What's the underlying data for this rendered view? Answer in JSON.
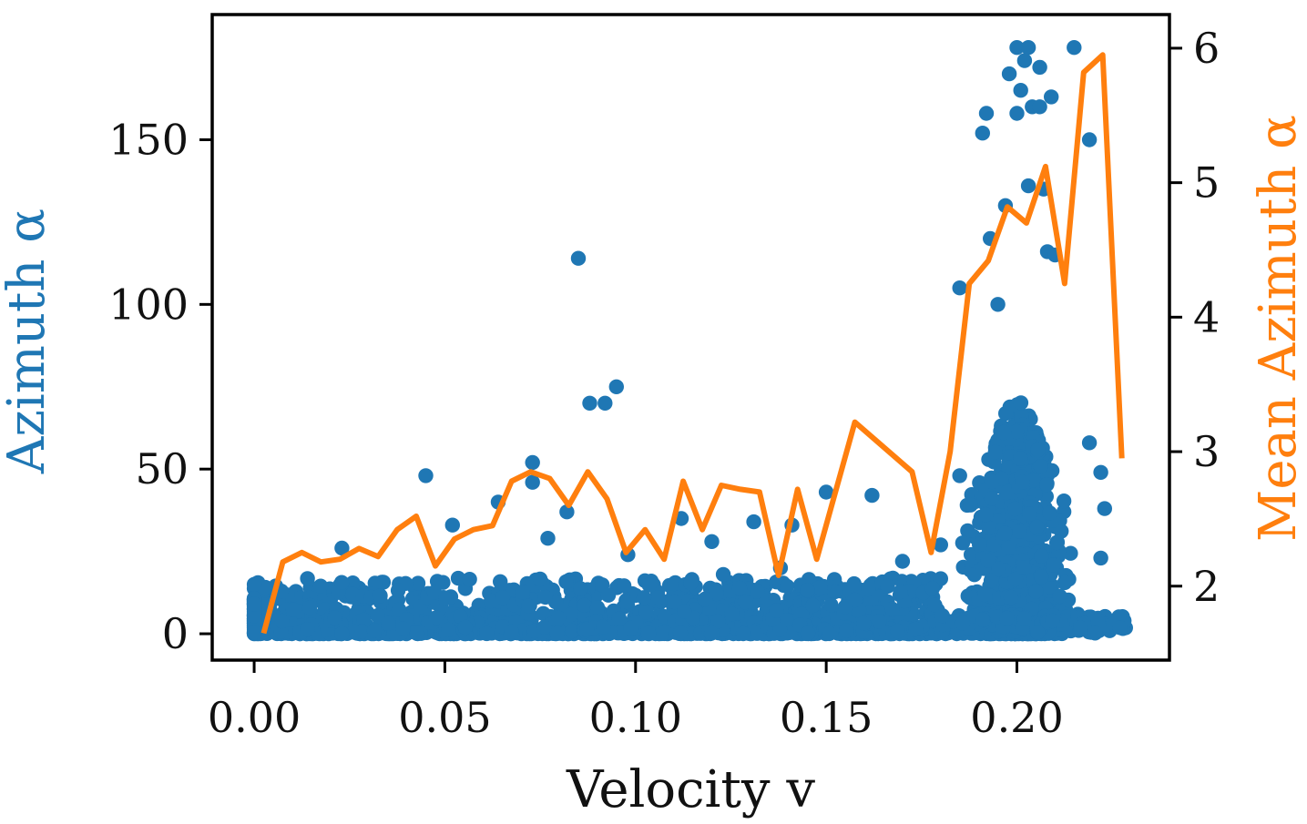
{
  "chart_data": {
    "type": "scatter",
    "xlabel": "Velocity v",
    "ylabel_left": "Azimuth α",
    "ylabel_right": "Mean Azimuth α",
    "xlim": [
      -0.011,
      0.24
    ],
    "ylim_left": [
      -8,
      188
    ],
    "ylim_right": [
      1.45,
      6.25
    ],
    "x_ticks": [
      0.0,
      0.05,
      0.1,
      0.15,
      0.2
    ],
    "x_tick_labels": [
      "0.00",
      "0.05",
      "0.10",
      "0.15",
      "0.20"
    ],
    "y_left_ticks": [
      0,
      50,
      100,
      150
    ],
    "y_left_tick_labels": [
      "0",
      "50",
      "100",
      "150"
    ],
    "y_right_ticks": [
      2,
      3,
      4,
      5,
      6
    ],
    "y_right_tick_labels": [
      "2",
      "3",
      "4",
      "5",
      "6"
    ],
    "colors": {
      "scatter": "#1f77b4",
      "line": "#ff7f0e",
      "axis": "#000000"
    },
    "scatter_series": {
      "name": "Azimuth α",
      "outliers": [
        [
          0.0,
          15
        ],
        [
          0.023,
          26
        ],
        [
          0.045,
          48
        ],
        [
          0.052,
          33
        ],
        [
          0.064,
          40
        ],
        [
          0.073,
          52
        ],
        [
          0.073,
          46
        ],
        [
          0.077,
          29
        ],
        [
          0.082,
          37
        ],
        [
          0.085,
          114
        ],
        [
          0.088,
          70
        ],
        [
          0.092,
          70
        ],
        [
          0.095,
          75
        ],
        [
          0.098,
          24
        ],
        [
          0.112,
          35
        ],
        [
          0.12,
          28
        ],
        [
          0.123,
          18
        ],
        [
          0.131,
          34
        ],
        [
          0.138,
          20
        ],
        [
          0.141,
          33
        ],
        [
          0.15,
          43
        ],
        [
          0.162,
          42
        ],
        [
          0.17,
          22
        ],
        [
          0.18,
          27
        ],
        [
          0.185,
          48
        ],
        [
          0.185,
          105
        ],
        [
          0.191,
          152
        ],
        [
          0.192,
          158
        ],
        [
          0.193,
          120
        ],
        [
          0.195,
          100
        ],
        [
          0.197,
          130
        ],
        [
          0.198,
          170
        ],
        [
          0.2,
          178
        ],
        [
          0.2,
          158
        ],
        [
          0.201,
          165
        ],
        [
          0.202,
          174
        ],
        [
          0.203,
          178
        ],
        [
          0.203,
          136
        ],
        [
          0.204,
          160
        ],
        [
          0.206,
          172
        ],
        [
          0.206,
          160
        ],
        [
          0.207,
          135
        ],
        [
          0.208,
          116
        ],
        [
          0.209,
          163
        ],
        [
          0.21,
          115
        ],
        [
          0.215,
          178
        ],
        [
          0.219,
          150
        ],
        [
          0.219,
          58
        ],
        [
          0.222,
          49
        ],
        [
          0.223,
          38
        ],
        [
          0.222,
          23
        ]
      ]
    },
    "line_series": {
      "name": "Mean Azimuth α",
      "x": [
        0.0025,
        0.0075,
        0.0125,
        0.0175,
        0.0225,
        0.0275,
        0.0325,
        0.0375,
        0.0425,
        0.0475,
        0.0525,
        0.0575,
        0.0625,
        0.0675,
        0.0725,
        0.0775,
        0.0825,
        0.0875,
        0.0925,
        0.0975,
        0.1025,
        0.1075,
        0.1125,
        0.1175,
        0.1225,
        0.1275,
        0.1325,
        0.1375,
        0.1425,
        0.1475,
        0.1575,
        0.1725,
        0.1775,
        0.1825,
        0.1875,
        0.1925,
        0.1975,
        0.2025,
        0.2075,
        0.2125,
        0.2175,
        0.2225,
        0.2275
      ],
      "values": [
        1.65,
        2.18,
        2.25,
        2.18,
        2.2,
        2.28,
        2.22,
        2.42,
        2.52,
        2.15,
        2.35,
        2.42,
        2.45,
        2.78,
        2.85,
        2.8,
        2.6,
        2.85,
        2.65,
        2.25,
        2.42,
        2.2,
        2.78,
        2.42,
        2.75,
        2.72,
        2.7,
        2.08,
        2.72,
        2.2,
        3.22,
        2.85,
        2.25,
        3.0,
        4.25,
        4.42,
        4.82,
        4.7,
        5.12,
        4.25,
        5.82,
        5.95,
        2.95
      ]
    }
  }
}
